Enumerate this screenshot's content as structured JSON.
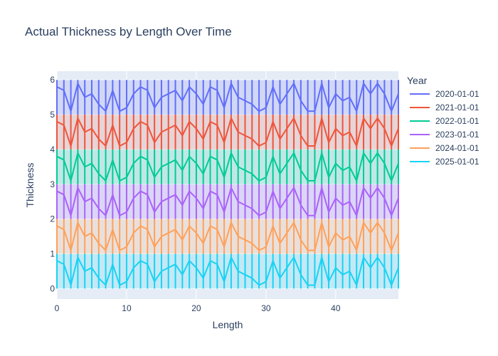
{
  "chart_data": {
    "type": "line",
    "title": "Actual Thickness by Length Over Time",
    "xlabel": "Length",
    "ylabel": "Thickness",
    "xlim": [
      0,
      49
    ],
    "ylim": [
      -0.3,
      6.25
    ],
    "x_ticks": [
      0,
      10,
      20,
      30,
      40
    ],
    "y_ticks": [
      0,
      1,
      2,
      3,
      4,
      5,
      6
    ],
    "grid": true,
    "legend_title": "Year",
    "legend_position": "right",
    "x": [
      0,
      1,
      2,
      3,
      4,
      5,
      6,
      7,
      8,
      9,
      10,
      11,
      12,
      13,
      14,
      15,
      16,
      17,
      18,
      19,
      20,
      21,
      22,
      23,
      24,
      25,
      26,
      27,
      28,
      29,
      30,
      31,
      32,
      33,
      34,
      35,
      36,
      37,
      38,
      39,
      40,
      41,
      42,
      43,
      44,
      45,
      46,
      47,
      48,
      49
    ],
    "within_band_pattern": [
      0.8,
      0.7,
      0.1,
      0.9,
      0.5,
      0.6,
      0.3,
      0.1,
      0.7,
      0.1,
      0.2,
      0.6,
      0.8,
      0.7,
      0.2,
      0.5,
      0.6,
      0.7,
      0.4,
      0.8,
      0.6,
      0.3,
      0.8,
      0.7,
      0.2,
      0.9,
      0.5,
      0.4,
      0.3,
      0.1,
      0.2,
      0.8,
      0.3,
      0.6,
      0.9,
      0.4,
      0.1,
      0.1,
      0.9,
      0.2,
      0.6,
      0.4,
      0.5,
      0.1,
      0.9,
      0.6,
      0.9,
      0.6,
      0.1,
      0.6
    ],
    "series": [
      {
        "name": "2020-01-01",
        "color": "#636efa",
        "band_min": 5
      },
      {
        "name": "2021-01-01",
        "color": "#ef553b",
        "band_min": 4
      },
      {
        "name": "2022-01-01",
        "color": "#00cc96",
        "band_min": 3
      },
      {
        "name": "2023-01-01",
        "color": "#ab63fa",
        "band_min": 2
      },
      {
        "name": "2024-01-01",
        "color": "#ffa15a",
        "band_min": 1
      },
      {
        "name": "2025-01-01",
        "color": "#19d3f3",
        "band_min": 0
      }
    ]
  }
}
